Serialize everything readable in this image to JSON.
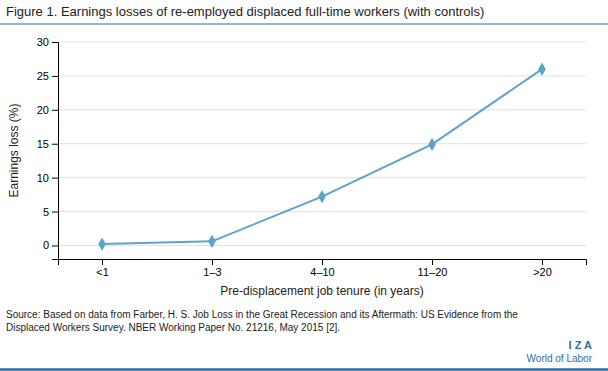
{
  "chart_data": {
    "type": "line",
    "title": "Figure 1. Earnings losses of re-employed displaced full-time workers (with controls)",
    "x_label": "Pre-displacement job tenure (in years)",
    "y_label": "Earnings loss (%)",
    "categories": [
      "<1",
      "1–3",
      "4–10",
      "11–20",
      ">20"
    ],
    "values": [
      0.2,
      0.6,
      7.2,
      14.9,
      26.0
    ],
    "color": "#5ba3c9",
    "marker": "diamond",
    "ylim": [
      -2,
      30
    ],
    "yticks": [
      0,
      5,
      10,
      15,
      20,
      25,
      30
    ],
    "grid": true,
    "annotations": [
      "Source: Based on data from Farber, H. S. Job Loss in the Great Recession and its Aftermath: US Evidence from the",
      "Displaced Workers Survey. NBER Working Paper No. 21216, May 2015 [2].",
      "I Z A",
      "World of Labor"
    ]
  }
}
